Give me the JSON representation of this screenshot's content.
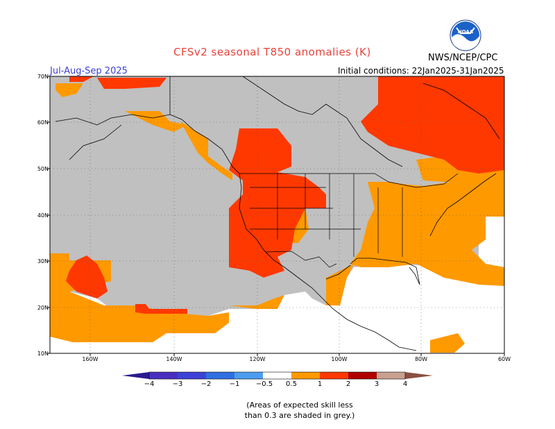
{
  "title": "CFSv2 seasonal T850 anomalies (K)",
  "season": "Jul-Aug-Sep 2025",
  "initial_conditions": "Initial conditions: 22Jan2025-31Jan2025",
  "organization": "NWS/NCEP/CPC",
  "logo_text": "NOAA",
  "lat_labels": [
    "70N",
    "60N",
    "50N",
    "40N",
    "30N",
    "20N",
    "10N"
  ],
  "lon_labels": [
    "160W",
    "140W",
    "120W",
    "100W",
    "80W",
    "60W"
  ],
  "colorbar": {
    "labels": [
      "−4",
      "−3",
      "−2",
      "−1",
      "−0.5",
      "0.5",
      "1",
      "2",
      "3",
      "4"
    ],
    "colors": [
      "#4a2fc0",
      "#3c42d6",
      "#2f6fe0",
      "#4c9df0",
      "#7cbcf8",
      "#ffffff",
      "#ff9900",
      "#ff3800",
      "#b00000",
      "#c8a090",
      "#8a5040"
    ]
  },
  "note": {
    "line1": "(Areas of expected skill less",
    "line2": "than 0.3 are shaded in grey.)"
  },
  "colors": {
    "grey": "#c0c0c0",
    "orange": "#ff9900",
    "red": "#ff3800",
    "title": "#e8413a",
    "season": "#3b3fd0"
  }
}
